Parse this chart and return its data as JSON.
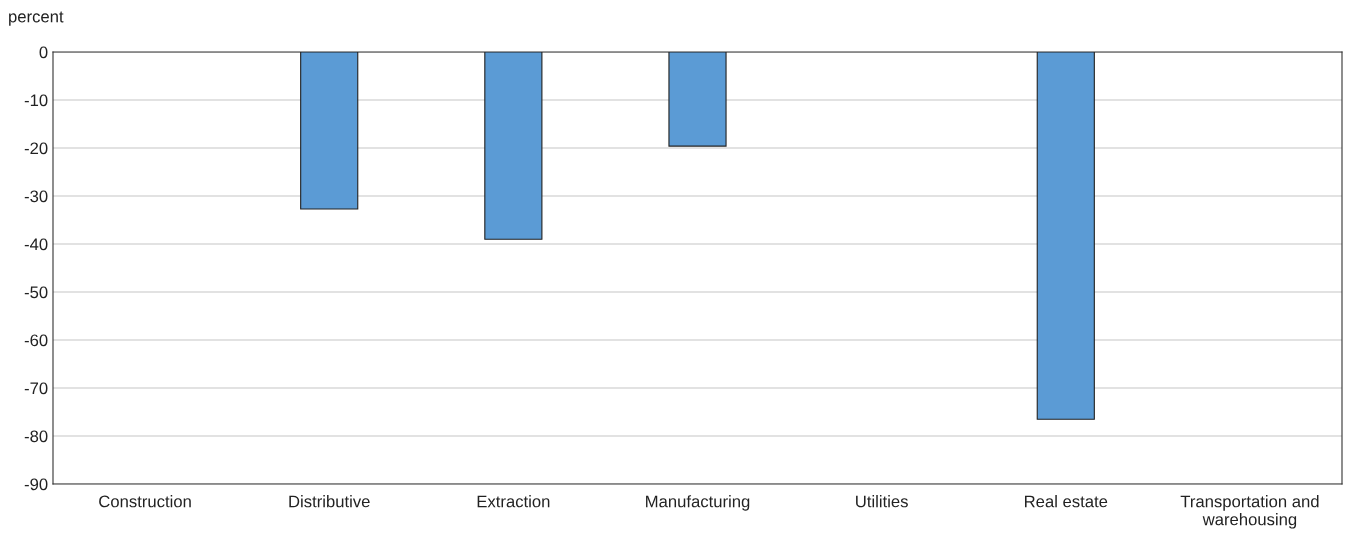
{
  "chart_data": {
    "type": "bar",
    "ylabel": "percent",
    "categories": [
      "Construction",
      "Distributive",
      "Extraction",
      "Manufacturing",
      "Utilities",
      "Real estate",
      "Transportation and\nwarehousing"
    ],
    "values": [
      null,
      -32.7,
      -39.0,
      -19.6,
      null,
      -76.5,
      null
    ],
    "color": "#5b9bd5",
    "ylim": [
      -90,
      0
    ],
    "yticks": [
      -90,
      -80,
      -70,
      -60,
      -50,
      -40,
      -30,
      -20,
      -10,
      0
    ],
    "grid": "y",
    "legend": false
  }
}
